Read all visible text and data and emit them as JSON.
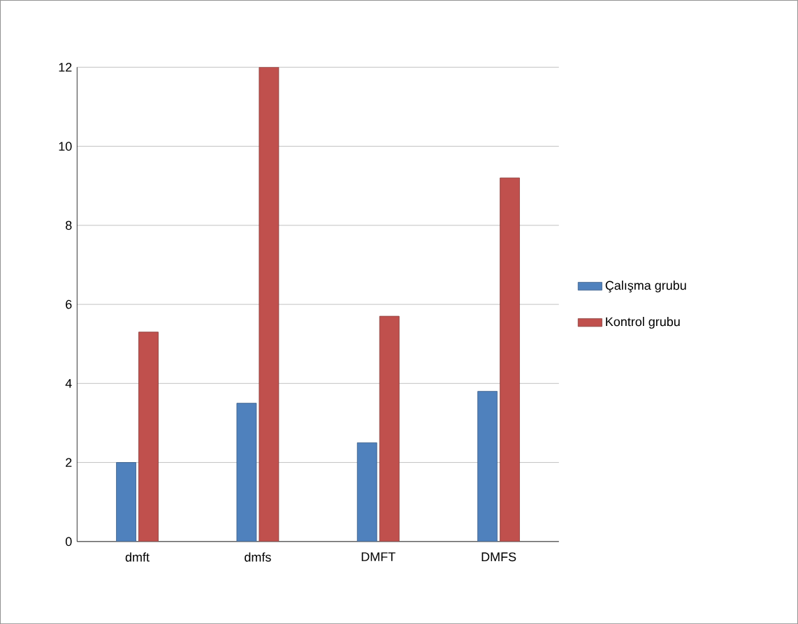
{
  "chart_data": {
    "type": "bar",
    "categories": [
      "dmft",
      "dmfs",
      "DMFT",
      "DMFS"
    ],
    "series": [
      {
        "name": "Çalışma grubu",
        "color": "#4f81bd",
        "values": [
          2.0,
          3.5,
          2.5,
          3.8
        ]
      },
      {
        "name": "Kontrol grubu",
        "color": "#c0504d",
        "values": [
          5.3,
          12.0,
          5.7,
          9.2
        ]
      }
    ],
    "ylim": [
      0,
      12
    ],
    "yticks": [
      0,
      2,
      4,
      6,
      8,
      10,
      12
    ],
    "grid": "y",
    "legend": "right"
  }
}
